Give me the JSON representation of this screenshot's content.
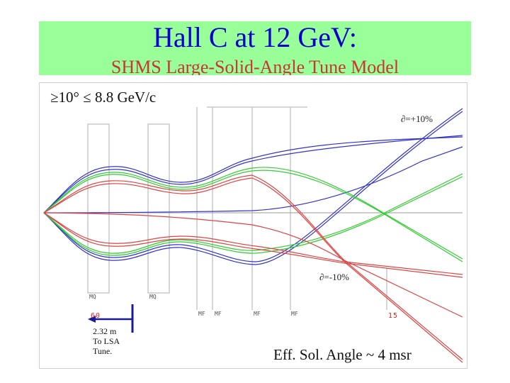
{
  "header": {
    "title": "Hall C at 12 GeV:",
    "subtitle": "SHMS Large-Solid-Angle Tune Model"
  },
  "plot": {
    "cut_label": "≥10°   ≤ 8.8 GeV/c",
    "delta_plus": "∂=+10%",
    "delta_minus": "∂=-10%",
    "element_labels": {
      "mq1": "MQ",
      "mq2": "MQ",
      "mf1": "MF",
      "mf2": "MF",
      "mf3": "MF",
      "mf4": "MF"
    },
    "red_tag_left": "60",
    "red_tag_right": "15",
    "tune_note": "2.32 m\nTo LSA\nTune.",
    "eff_angle": "Eff. Sol. Angle ~ 4 msr"
  },
  "colors": {
    "title": "#0000cc",
    "subtitle": "#cc3333",
    "band": "#99ff99",
    "blue_rays": "#3333cc",
    "green_rays": "#33cc33",
    "red_rays": "#dd4444",
    "arrow": "#1a1aa0"
  }
}
